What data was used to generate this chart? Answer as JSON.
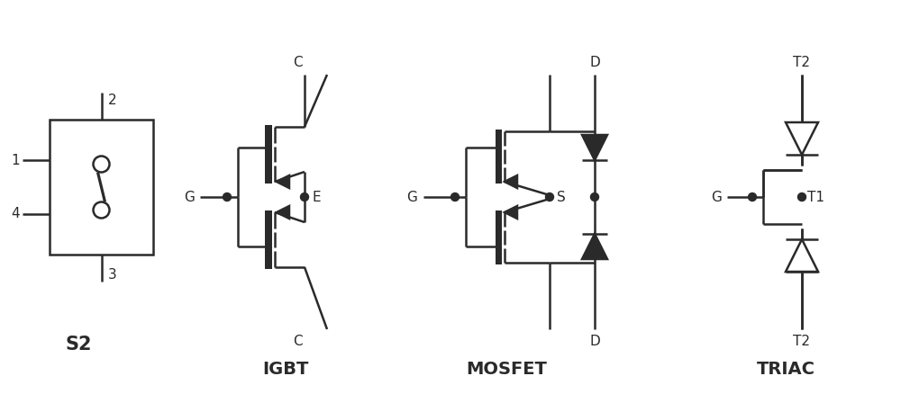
{
  "background": "#ffffff",
  "line_color": "#2a2a2a",
  "figsize": [
    10.0,
    4.38
  ],
  "dpi": 100,
  "labels": {
    "s2": "S2",
    "igbt": "IGBT",
    "mosfet": "MOSFET",
    "triac": "TRIAC"
  }
}
